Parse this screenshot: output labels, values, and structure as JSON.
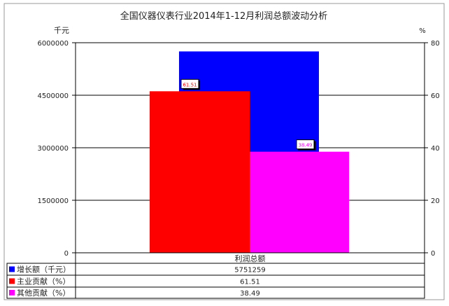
{
  "chart_data": {
    "type": "bar",
    "title": "全国仪器仪表行业2014年1-12月利润总额波动分析",
    "ylabel_left": "千元",
    "ylabel_right": "%",
    "categories": [
      "利润总额"
    ],
    "ylim_left": [
      0,
      6000000
    ],
    "ylim_right": [
      0,
      80
    ],
    "yticks_left": [
      "0",
      "1500000",
      "3000000",
      "4500000",
      "6000000"
    ],
    "yticks_right": [
      "0",
      "20",
      "40",
      "60",
      "80"
    ],
    "grid": true,
    "series": [
      {
        "name": "增长额（千元）",
        "axis": "left",
        "values": [
          5751259
        ],
        "display": "5751259",
        "color": "#0000ff"
      },
      {
        "name": "主业贡献（%）",
        "axis": "right",
        "values": [
          61.51
        ],
        "display": "61.51",
        "color": "#ff0000"
      },
      {
        "name": "其他贡献（%）",
        "axis": "right",
        "values": [
          38.49
        ],
        "display": "38.49",
        "color": "#ff00ff"
      }
    ],
    "data_labels": [
      "61.51",
      "38.49"
    ],
    "legend_placement": "bottom data table"
  }
}
